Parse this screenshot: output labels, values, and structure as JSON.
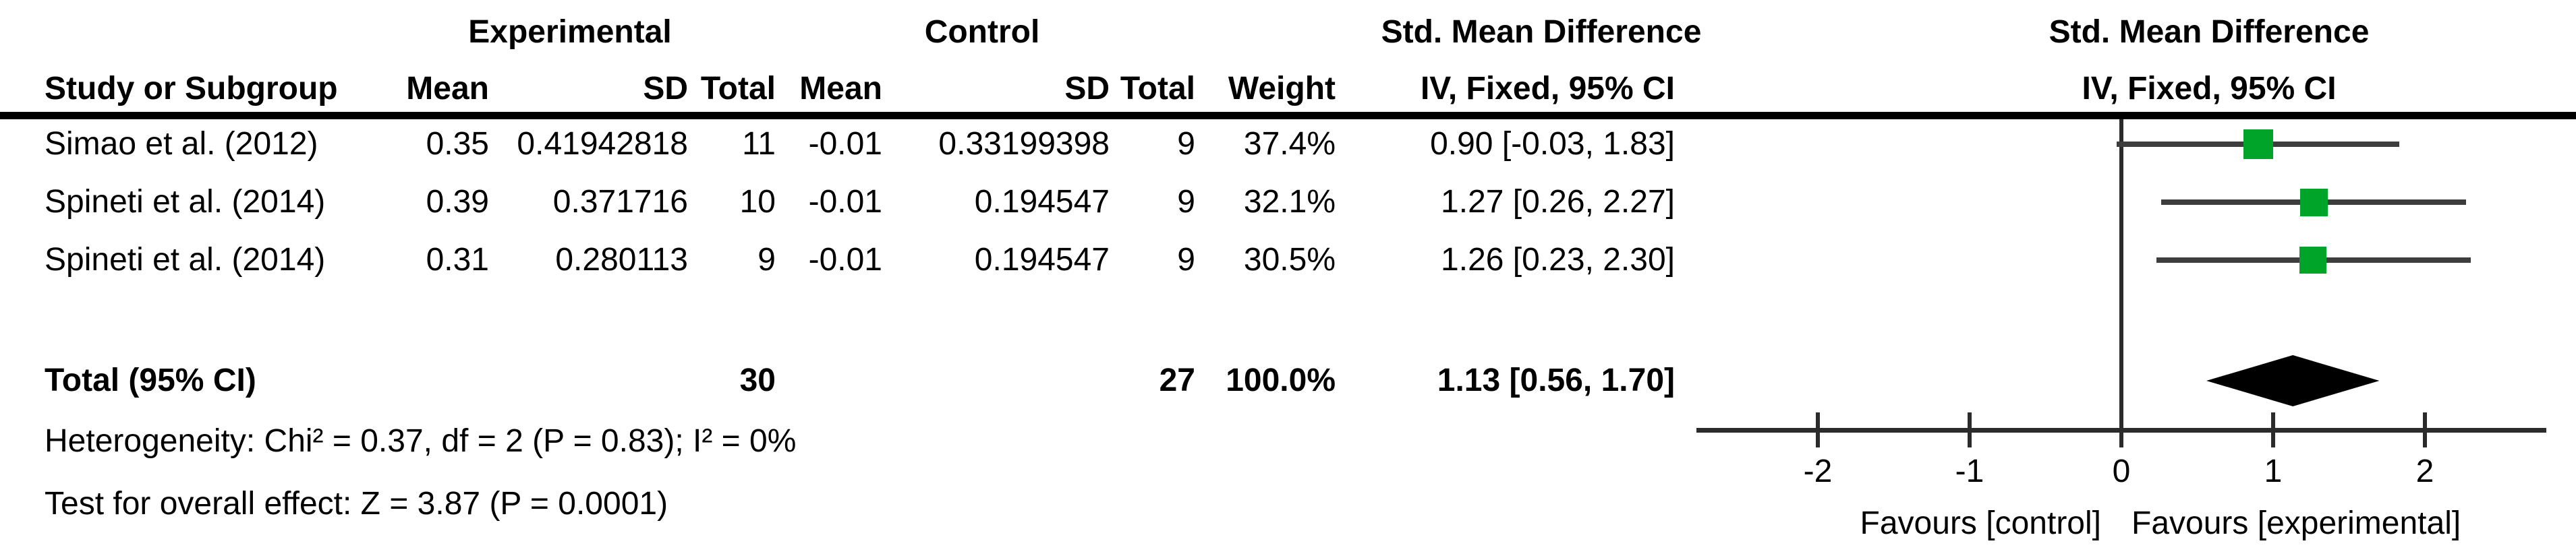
{
  "table": {
    "group_headers": {
      "experimental": "Experimental",
      "control": "Control",
      "effect": "Std. Mean Difference"
    },
    "col_headers": {
      "study": "Study or Subgroup",
      "mean_exp": "Mean",
      "sd_exp": "SD",
      "total_exp": "Total",
      "mean_ctl": "Mean",
      "sd_ctl": "SD",
      "total_ctl": "Total",
      "weight": "Weight",
      "effect_ci": "IV, Fixed, 95% CI"
    },
    "rows": [
      {
        "study": "Simao et al. (2012)",
        "exp_mean": "0.35",
        "exp_sd": "0.41942818",
        "exp_total": "11",
        "ctl_mean": "-0.01",
        "ctl_sd": "0.33199398",
        "ctl_total": "9",
        "weight": "37.4%",
        "effect": "0.90 [-0.03, 1.83]"
      },
      {
        "study": "Spineti et al. (2014)",
        "exp_mean": "0.39",
        "exp_sd": "0.371716",
        "exp_total": "10",
        "ctl_mean": "-0.01",
        "ctl_sd": "0.194547",
        "ctl_total": "9",
        "weight": "32.1%",
        "effect": "1.27 [0.26, 2.27]"
      },
      {
        "study": "Spineti et al. (2014)",
        "exp_mean": "0.31",
        "exp_sd": "0.280113",
        "exp_total": "9",
        "ctl_mean": "-0.01",
        "ctl_sd": "0.194547",
        "ctl_total": "9",
        "weight": "30.5%",
        "effect": "1.26 [0.23, 2.30]"
      }
    ],
    "total_row": {
      "label": "Total (95% CI)",
      "exp_total": "30",
      "ctl_total": "27",
      "weight": "100.0%",
      "effect": "1.13 [0.56, 1.70]"
    },
    "footnotes": {
      "heterogeneity": "Heterogeneity: Chi² = 0.37, df = 2 (P = 0.83); I² = 0%",
      "overall_effect": "Test for overall effect: Z = 3.87 (P = 0.0001)"
    }
  },
  "plot": {
    "header_line1": "Std. Mean Difference",
    "header_line2": "IV, Fixed, 95% CI",
    "favours_left": "Favours [control]",
    "favours_right": "Favours [experimental]"
  },
  "colors": {
    "marker": "#00A428",
    "ci_line": "#3d3d3d",
    "axis": "#2b2b2b",
    "diamond": "#000000",
    "rule": "#000000"
  },
  "chart_data": {
    "type": "forest",
    "effect_measure": "Std. Mean Difference, IV, Fixed, 95% CI",
    "studies": [
      {
        "name": "Simao et al. (2012)",
        "exp": {
          "mean": 0.35,
          "sd": 0.41942818,
          "n": 11
        },
        "ctl": {
          "mean": -0.01,
          "sd": 0.33199398,
          "n": 9
        },
        "weight_pct": 37.4,
        "smd": 0.9,
        "ci": [
          -0.03,
          1.83
        ]
      },
      {
        "name": "Spineti et al. (2014)",
        "exp": {
          "mean": 0.39,
          "sd": 0.371716,
          "n": 10
        },
        "ctl": {
          "mean": -0.01,
          "sd": 0.194547,
          "n": 9
        },
        "weight_pct": 32.1,
        "smd": 1.27,
        "ci": [
          0.26,
          2.27
        ]
      },
      {
        "name": "Spineti et al. (2014)",
        "exp": {
          "mean": 0.31,
          "sd": 0.280113,
          "n": 9
        },
        "ctl": {
          "mean": -0.01,
          "sd": 0.194547,
          "n": 9
        },
        "weight_pct": 30.5,
        "smd": 1.26,
        "ci": [
          0.23,
          2.3
        ]
      }
    ],
    "total": {
      "exp_n": 30,
      "ctl_n": 27,
      "weight_pct": 100.0,
      "smd": 1.13,
      "ci": [
        0.56,
        1.7
      ]
    },
    "heterogeneity": {
      "chi2": 0.37,
      "df": 2,
      "p": 0.83,
      "i2_pct": 0
    },
    "overall_effect": {
      "z": 3.87,
      "p": 0.0001
    },
    "axis": {
      "ticks": [
        -2,
        -1,
        0,
        1,
        2
      ],
      "xlim": [
        -2.8,
        2.8
      ]
    },
    "xlabel_left": "Favours [control]",
    "xlabel_right": "Favours [experimental]"
  }
}
